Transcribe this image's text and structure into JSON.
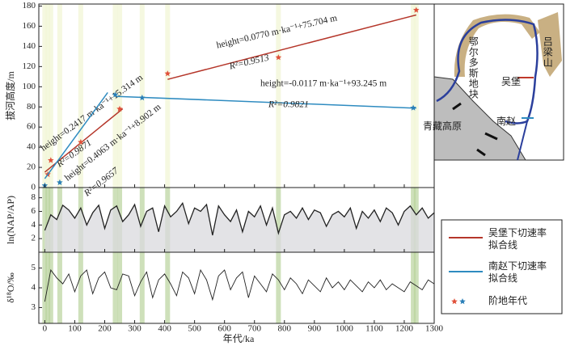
{
  "chart_data": [
    {
      "type": "scatter",
      "ylabel": "拔河高度/m",
      "xlim": [
        -20,
        1300
      ],
      "ylim": [
        0,
        182
      ],
      "yticks": [
        0,
        20,
        40,
        60,
        80,
        100,
        120,
        140,
        160,
        180
      ],
      "marker_legend": "阶地年代",
      "series": [
        {
          "name": "吴堡下切速率拟合线",
          "color": "#b5362a",
          "marker_color": "#e0503a",
          "x": [
            10,
            20,
            120,
            250,
            410,
            780,
            1240
          ],
          "values": [
            13,
            27,
            45,
            78,
            113,
            129,
            176
          ],
          "fits": [
            {
              "equation": "height=0.2417 m·ka⁻¹+15.314 m",
              "r2": "R²=0.9871",
              "xrange": [
                0,
                260
              ],
              "slope": 0.2417,
              "intercept": 15.314
            },
            {
              "equation": "height=0.0770 m·ka⁻¹+75.704 m",
              "r2": "R²=0.9513",
              "xrange": [
                410,
                1240
              ],
              "slope": 0.077,
              "intercept": 75.704
            }
          ]
        },
        {
          "name": "南赵下切速率拟合线",
          "color": "#2e8bc0",
          "marker_color": "#2a7fb8",
          "x": [
            0,
            50,
            235,
            325,
            1230
          ],
          "values": [
            2,
            5,
            92,
            89,
            79
          ],
          "fits": [
            {
              "equation": "height=0.4063 m·ka⁻¹+8.902 m",
              "r2": "R²=0.9657",
              "xrange": [
                0,
                210
              ],
              "slope": 0.4063,
              "intercept": 8.902
            },
            {
              "equation": "height=-0.0117 m·ka⁻¹+93.245 m",
              "r2": "R²=0.9821",
              "xrange": [
                240,
                1240
              ],
              "slope": -0.0117,
              "intercept": 93.245
            }
          ]
        }
      ]
    },
    {
      "type": "area",
      "ylabel": "ln(NAP/AP)",
      "xlim": [
        -20,
        1300
      ],
      "ylim": [
        0,
        9.5
      ],
      "yticks": [
        2,
        4,
        6,
        8
      ],
      "color": "#222222",
      "x": [
        0,
        20,
        40,
        60,
        80,
        100,
        120,
        140,
        160,
        180,
        200,
        220,
        240,
        260,
        280,
        300,
        320,
        340,
        360,
        380,
        400,
        420,
        440,
        460,
        480,
        500,
        520,
        540,
        560,
        580,
        600,
        620,
        640,
        660,
        680,
        700,
        720,
        740,
        760,
        780,
        800,
        820,
        840,
        860,
        880,
        900,
        920,
        940,
        960,
        980,
        1000,
        1020,
        1040,
        1060,
        1080,
        1100,
        1120,
        1140,
        1160,
        1180,
        1200,
        1220,
        1240,
        1260,
        1280,
        1300
      ],
      "values": [
        3.2,
        5.5,
        4.8,
        6.9,
        6.2,
        5.0,
        6.5,
        4.0,
        5.8,
        6.9,
        3.5,
        6.2,
        6.8,
        4.5,
        5.5,
        7.0,
        3.8,
        6.0,
        6.5,
        3.0,
        6.8,
        5.2,
        6.0,
        7.2,
        4.2,
        6.5,
        6.0,
        7.0,
        2.5,
        6.8,
        5.5,
        4.5,
        6.2,
        3.0,
        6.0,
        5.2,
        6.8,
        4.0,
        6.5,
        2.8,
        5.5,
        6.0,
        5.0,
        6.5,
        4.8,
        6.2,
        5.8,
        3.8,
        5.5,
        6.0,
        5.2,
        6.5,
        3.5,
        6.0,
        5.0,
        6.2,
        4.5,
        6.5,
        5.8,
        4.0,
        6.0,
        6.8,
        5.5,
        6.5,
        5.0,
        5.8
      ]
    },
    {
      "type": "line",
      "ylabel": "δ¹⁸O/‰",
      "xlabel": "年代/ka",
      "xlim": [
        -20,
        1300
      ],
      "ylim": [
        2.2,
        5.8
      ],
      "yticks": [
        3,
        4,
        5
      ],
      "color": "#222222",
      "xticks": [
        0,
        100,
        200,
        300,
        400,
        500,
        600,
        700,
        800,
        900,
        1000,
        1100,
        1200,
        1300
      ],
      "x": [
        0,
        20,
        40,
        60,
        80,
        100,
        120,
        140,
        160,
        180,
        200,
        220,
        240,
        260,
        280,
        300,
        320,
        340,
        360,
        380,
        400,
        420,
        440,
        460,
        480,
        500,
        520,
        540,
        560,
        580,
        600,
        620,
        640,
        660,
        680,
        700,
        720,
        740,
        760,
        780,
        800,
        820,
        840,
        860,
        880,
        900,
        920,
        940,
        960,
        980,
        1000,
        1020,
        1040,
        1060,
        1080,
        1100,
        1120,
        1140,
        1160,
        1180,
        1200,
        1220,
        1240,
        1260,
        1280,
        1300
      ],
      "values": [
        3.3,
        4.9,
        4.5,
        4.2,
        4.7,
        3.8,
        4.6,
        4.9,
        3.7,
        4.5,
        4.8,
        4.0,
        3.9,
        4.7,
        4.6,
        3.6,
        4.3,
        4.8,
        3.5,
        4.4,
        4.7,
        4.2,
        3.6,
        4.8,
        4.5,
        3.7,
        4.9,
        4.4,
        3.4,
        4.6,
        4.9,
        3.9,
        4.5,
        4.8,
        3.5,
        4.6,
        4.2,
        3.8,
        4.7,
        4.4,
        3.9,
        4.5,
        4.2,
        3.7,
        4.4,
        4.1,
        3.8,
        4.5,
        4.0,
        4.3,
        3.9,
        4.4,
        4.1,
        3.8,
        4.3,
        4.0,
        4.4,
        3.9,
        4.2,
        4.0,
        3.8,
        4.3,
        4.1,
        3.9,
        4.4,
        4.2
      ]
    }
  ],
  "map": {
    "labels": [
      "鄂尔多斯地块",
      "吕梁山",
      "吴堡",
      "青藏高原",
      "南赵"
    ]
  }
}
